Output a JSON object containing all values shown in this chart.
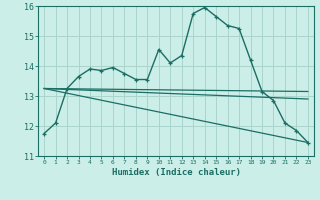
{
  "xlabel": "Humidex (Indice chaleur)",
  "bg_color": "#cceee8",
  "grid_color": "#aad4cc",
  "line_color": "#1a6e64",
  "xlim": [
    -0.5,
    23.5
  ],
  "ylim": [
    11,
    16
  ],
  "yticks": [
    11,
    12,
    13,
    14,
    15,
    16
  ],
  "xticks": [
    0,
    1,
    2,
    3,
    4,
    5,
    6,
    7,
    8,
    9,
    10,
    11,
    12,
    13,
    14,
    15,
    16,
    17,
    18,
    19,
    20,
    21,
    22,
    23
  ],
  "line1_x": [
    0,
    1,
    2,
    3,
    4,
    5,
    6,
    7,
    8,
    9,
    10,
    11,
    12,
    13,
    14,
    15,
    16,
    17,
    18,
    19,
    20,
    21,
    22,
    23
  ],
  "line1_y": [
    11.75,
    12.1,
    13.25,
    13.65,
    13.9,
    13.85,
    13.95,
    13.75,
    13.55,
    13.55,
    14.55,
    14.1,
    14.35,
    15.75,
    15.95,
    15.65,
    15.35,
    15.25,
    14.2,
    13.15,
    12.85,
    12.1,
    11.85,
    11.45
  ],
  "line2_x": [
    0,
    23
  ],
  "line2_y": [
    13.25,
    13.15
  ],
  "line3_x": [
    0,
    23
  ],
  "line3_y": [
    13.25,
    11.45
  ],
  "line4_x": [
    0,
    23
  ],
  "line4_y": [
    13.25,
    12.9
  ]
}
